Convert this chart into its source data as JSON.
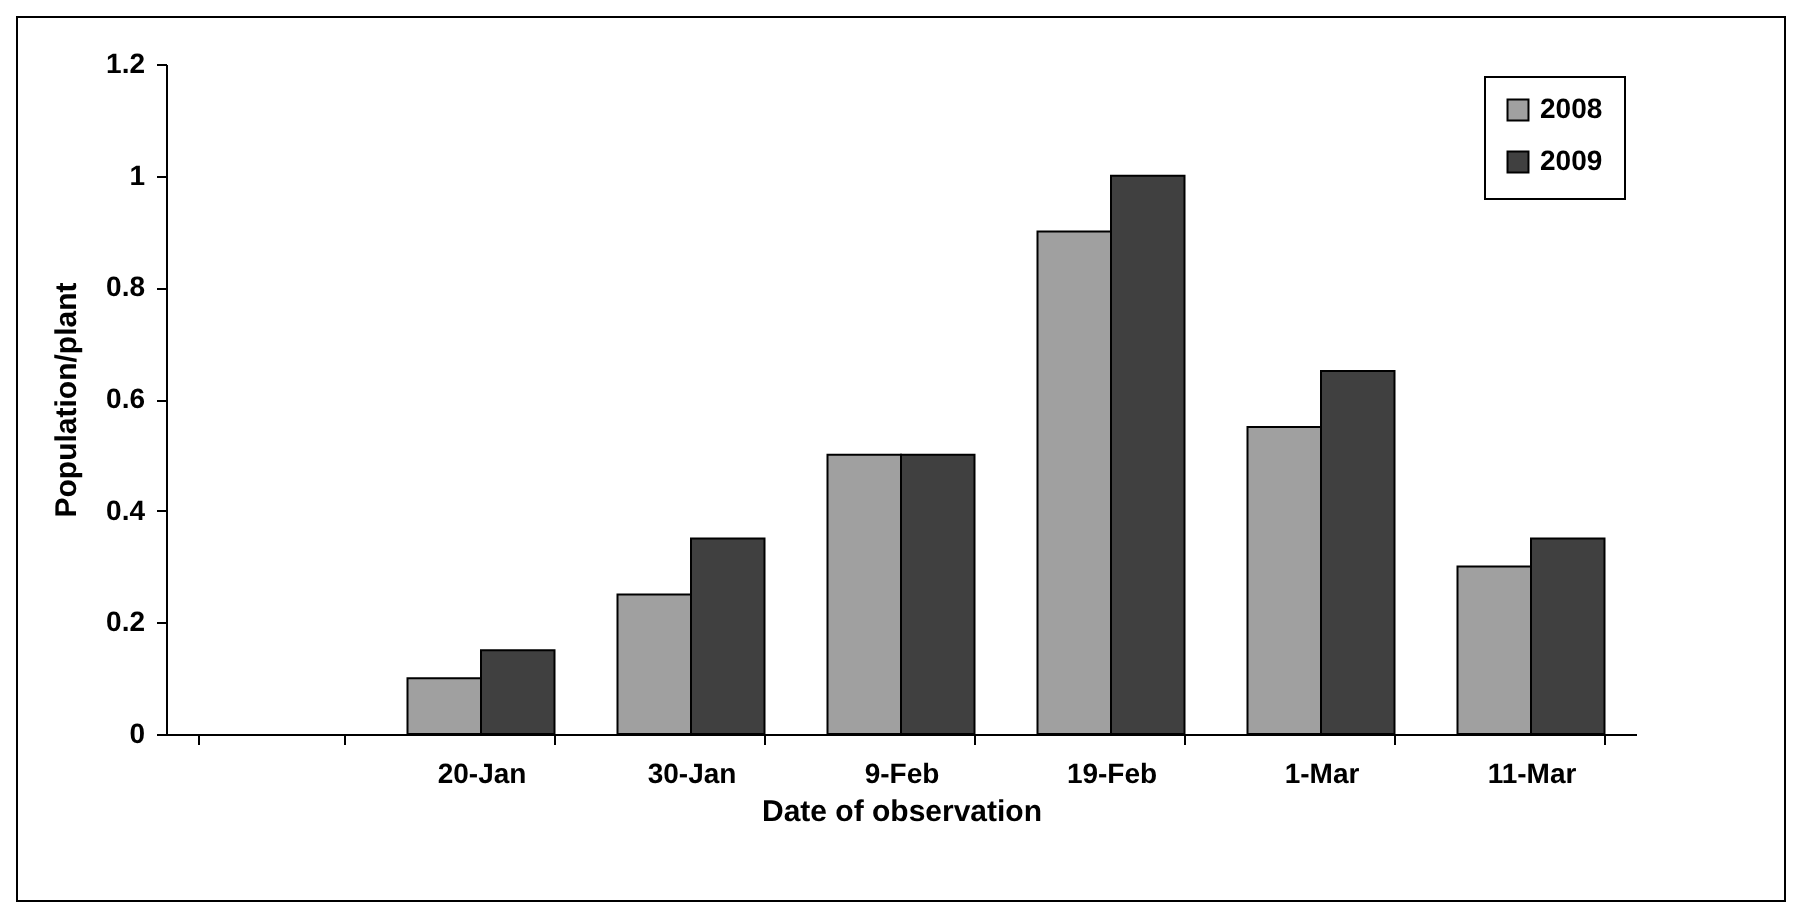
{
  "chart_data": {
    "type": "bar",
    "xlabel": "Date of observation",
    "ylabel": "Population/plant",
    "categories": [
      null,
      "20-Jan",
      "30-Jan",
      "9-Feb",
      "19-Feb",
      "1-Mar",
      "11-Mar"
    ],
    "series": [
      {
        "name": "2008",
        "color": "#a0a0a0",
        "values": [
          null,
          0.1,
          0.25,
          0.5,
          0.9,
          0.55,
          0.3
        ]
      },
      {
        "name": "2009",
        "color": "#404040",
        "values": [
          null,
          0.15,
          0.35,
          0.5,
          1,
          0.65,
          0.35
        ]
      }
    ],
    "ylim": [
      0,
      1.2
    ],
    "yticks": [
      0,
      0.2,
      0.4,
      0.6,
      0.8,
      1,
      1.2
    ],
    "grid": false,
    "legend": "top right"
  }
}
